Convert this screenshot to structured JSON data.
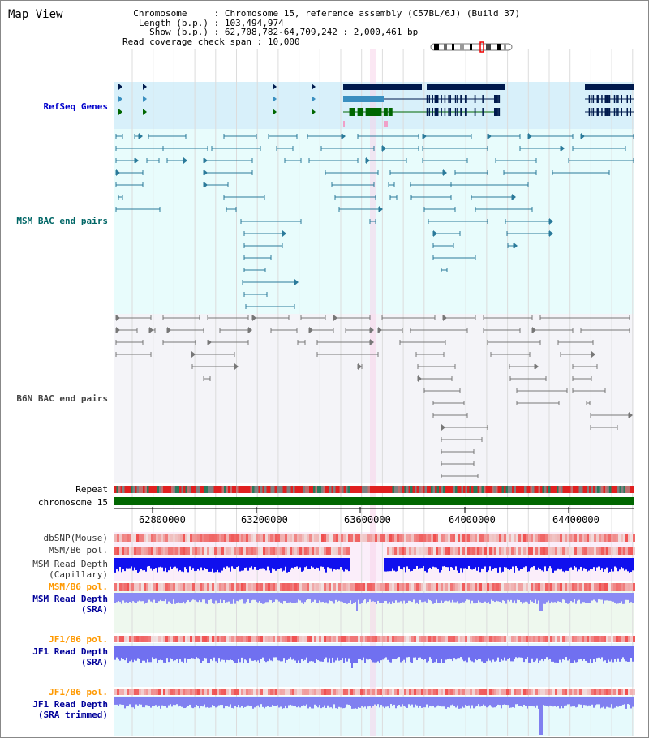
{
  "title": "Map View",
  "info": [
    {
      "key": "Chromosome",
      "value": "Chromosome 15, reference assembly (C57BL/6J) (Build 37)"
    },
    {
      "key": "Length (b.p.)",
      "value": "103,494,974"
    },
    {
      "key": "Show (b.p.)",
      "value": "62,708,782-64,709,242 : 2,000,461 bp"
    },
    {
      "key": "Read coverage check span",
      "value": "10,000"
    }
  ],
  "axis_ticks": [
    "62800000",
    "63200000",
    "63600000",
    "64000000",
    "64400000"
  ],
  "tracks": {
    "refseq": "RefSeq Genes",
    "msm_bac": "MSM BAC end pairs",
    "b6n_bac": "B6N BAC end pairs",
    "repeat": "Repeat",
    "chromosome": "chromosome 15",
    "dbsnp": "dbSNP(Mouse)",
    "msm_b6_pol": "MSM/B6 pol.",
    "msm_depth_cap_1": "MSM Read Depth",
    "msm_depth_cap_2": "(Capillary)",
    "msm_b6_pol2": "MSM/B6 pol.",
    "msm_depth_sra_1": "MSM Read Depth",
    "msm_depth_sra_2": "(SRA)",
    "jf1_b6_pol": "JF1/B6 pol.",
    "jf1_depth_sra_1": "JF1 Read Depth",
    "jf1_depth_sra_2": "(SRA)",
    "jf1_b6_pol2": "JF1/B6 pol.",
    "jf1_depth_trim_1": "JF1 Read Depth",
    "jf1_depth_trim_2": "(SRA trimmed)"
  },
  "colors": {
    "refseq_label": "#0000cc",
    "msm_label": "#006666",
    "b6n_label": "#444444",
    "orange_label": "#ff9900",
    "blue_label": "#000099",
    "refseq_bg": "#d8f0fa",
    "bac_bg": "#e8fcfc",
    "b6n_bg": "#f4f4f8",
    "gene_dark": "#001a4d",
    "gene_mid": "#3a8fc0",
    "gene_green": "#006600",
    "bac_line": "#2a7a9a",
    "b6n_line": "#777777",
    "chromosome_bar": "#006600",
    "depth_blue": "#1010ee",
    "depth_light": "#7070f0"
  }
}
